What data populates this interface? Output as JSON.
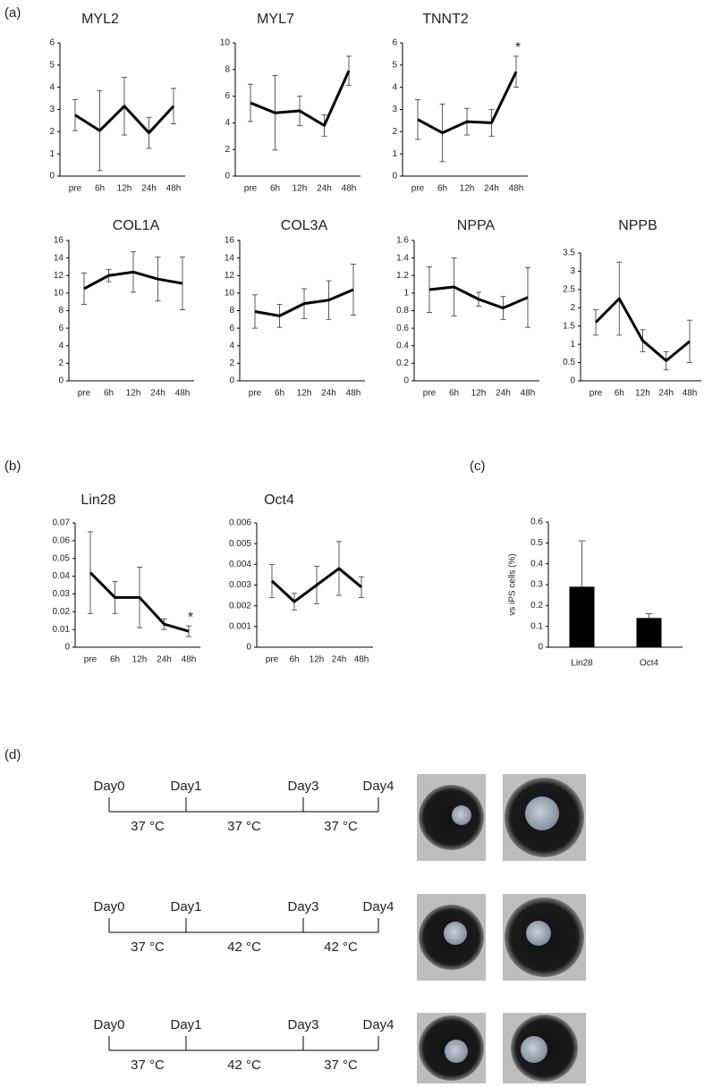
{
  "panel_labels": [
    "(a)",
    "(b)",
    "(c)",
    "(d)"
  ],
  "chart_data": [
    {
      "type": "line",
      "title": "MYL2",
      "categories": [
        "pre",
        "6h",
        "12h",
        "24h",
        "48h"
      ],
      "values": [
        2.75,
        2.05,
        3.15,
        1.95,
        3.15
      ],
      "errors": [
        0.7,
        1.8,
        1.3,
        0.7,
        0.8
      ],
      "color": "#000000",
      "ylim": [
        0,
        6
      ],
      "yticks": [
        0,
        1,
        2,
        3,
        4,
        5,
        6
      ]
    },
    {
      "type": "line",
      "title": "MYL7",
      "categories": [
        "pre",
        "6h",
        "12h",
        "24h",
        "48h"
      ],
      "values": [
        5.5,
        4.75,
        4.9,
        3.8,
        7.9
      ],
      "errors": [
        1.4,
        2.8,
        1.1,
        0.8,
        1.1
      ],
      "color": "#000000",
      "ylim": [
        0,
        10
      ],
      "yticks": [
        0,
        2,
        4,
        6,
        8,
        10
      ]
    },
    {
      "type": "line",
      "title": "TNNT2",
      "categories": [
        "pre",
        "6h",
        "12h",
        "24h",
        "48h"
      ],
      "values": [
        2.55,
        1.95,
        2.45,
        2.4,
        4.7
      ],
      "errors": [
        0.9,
        1.3,
        0.6,
        0.6,
        0.7
      ],
      "color": "#000000",
      "ylim": [
        0,
        6
      ],
      "yticks": [
        0,
        1,
        2,
        3,
        4,
        5,
        6
      ],
      "annotations": [
        {
          "text": "*",
          "category": "48h"
        }
      ]
    },
    {
      "type": "line",
      "title": "COL1A",
      "categories": [
        "pre",
        "6h",
        "12h",
        "24h",
        "48h"
      ],
      "values": [
        10.5,
        12.0,
        12.4,
        11.6,
        11.1
      ],
      "errors": [
        1.8,
        0.7,
        2.3,
        2.5,
        3.0
      ],
      "color": "#000000",
      "ylim": [
        0,
        16
      ],
      "yticks": [
        0,
        2,
        4,
        6,
        8,
        10,
        12,
        14,
        16
      ]
    },
    {
      "type": "line",
      "title": "COL3A",
      "categories": [
        "pre",
        "6h",
        "12h",
        "24h",
        "48h"
      ],
      "values": [
        7.9,
        7.4,
        8.8,
        9.2,
        10.4
      ],
      "errors": [
        1.9,
        1.3,
        1.7,
        2.2,
        2.9
      ],
      "color": "#000000",
      "ylim": [
        0,
        16
      ],
      "yticks": [
        0,
        2,
        4,
        6,
        8,
        10,
        12,
        14,
        16
      ]
    },
    {
      "type": "line",
      "title": "NPPA",
      "categories": [
        "pre",
        "6h",
        "12h",
        "24h",
        "48h"
      ],
      "values": [
        1.04,
        1.07,
        0.93,
        0.83,
        0.95
      ],
      "errors": [
        0.26,
        0.33,
        0.08,
        0.13,
        0.34
      ],
      "color": "#000000",
      "ylim": [
        0,
        1.6
      ],
      "yticks": [
        0,
        0.2,
        0.4,
        0.6,
        0.8,
        1,
        1.2,
        1.4,
        1.6
      ]
    },
    {
      "type": "line",
      "title": "NPPB",
      "categories": [
        "pre",
        "6h",
        "12h",
        "24h",
        "48h"
      ],
      "values": [
        1.6,
        2.25,
        1.1,
        0.55,
        1.08
      ],
      "errors": [
        0.35,
        1.0,
        0.3,
        0.25,
        0.58
      ],
      "color": "#000000",
      "ylim": [
        0,
        3.5
      ],
      "yticks": [
        0,
        0.5,
        1,
        1.5,
        2,
        2.5,
        3,
        3.5
      ]
    },
    {
      "type": "line",
      "title": "Lin28",
      "categories": [
        "pre",
        "6h",
        "12h",
        "24h",
        "48h"
      ],
      "values": [
        0.042,
        0.028,
        0.028,
        0.013,
        0.009
      ],
      "errors": [
        0.023,
        0.009,
        0.017,
        0.003,
        0.003
      ],
      "color": "#000000",
      "ylim": [
        0,
        0.07
      ],
      "yticks": [
        0,
        0.01,
        0.02,
        0.03,
        0.04,
        0.05,
        0.06,
        0.07
      ],
      "annotations": [
        {
          "text": "*",
          "category": "48h"
        }
      ]
    },
    {
      "type": "line",
      "title": "Oct4",
      "categories": [
        "pre",
        "6h",
        "12h",
        "24h",
        "48h"
      ],
      "values": [
        0.0032,
        0.0022,
        0.003,
        0.0038,
        0.0029
      ],
      "errors": [
        0.0008,
        0.0004,
        0.0009,
        0.0013,
        0.0005
      ],
      "color": "#000000",
      "ylim": [
        0,
        0.006
      ],
      "yticks": [
        0,
        0.001,
        0.002,
        0.003,
        0.004,
        0.005,
        0.006
      ]
    },
    {
      "type": "bar",
      "y_label": "vs iPS cells (%)",
      "categories": [
        "Lin28",
        "Oct4"
      ],
      "values": [
        0.29,
        0.14
      ],
      "errors": [
        0.22,
        0.02
      ],
      "color": "#000000",
      "ylim": [
        0,
        0.6
      ],
      "yticks": [
        0,
        0.1,
        0.2,
        0.3,
        0.4,
        0.5,
        0.6
      ]
    }
  ],
  "timelines": [
    {
      "days": [
        "Day0",
        "Day1",
        "Day3",
        "Day4"
      ],
      "temperatures": [
        "37 °C",
        "37 °C",
        "37 °C"
      ]
    },
    {
      "days": [
        "Day0",
        "Day1",
        "Day3",
        "Day4"
      ],
      "temperatures": [
        "37 °C",
        "42 °C",
        "42 °C"
      ]
    },
    {
      "days": [
        "Day0",
        "Day1",
        "Day3",
        "Day4"
      ],
      "temperatures": [
        "37 °C",
        "42 °C",
        "37 °C"
      ]
    }
  ]
}
